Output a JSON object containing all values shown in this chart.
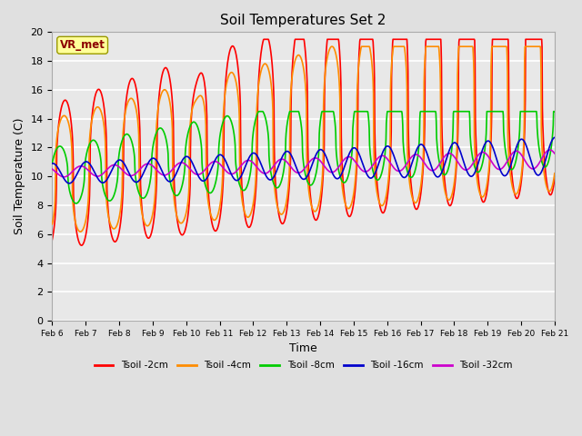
{
  "title": "Soil Temperatures Set 2",
  "xlabel": "Time",
  "ylabel": "Soil Temperature (C)",
  "ylim": [
    0,
    20
  ],
  "annotation_text": "VR_met",
  "annotation_color": "#8B0000",
  "annotation_bg": "#FFFF99",
  "annotation_edge": "#999900",
  "bg_color": "#E0E0E0",
  "plot_bg": "#E8E8E8",
  "grid_color": "#FFFFFF",
  "colors": {
    "Tsoil -2cm": "#FF0000",
    "Tsoil -4cm": "#FF8C00",
    "Tsoil -8cm": "#00CC00",
    "Tsoil -16cm": "#0000CC",
    "Tsoil -32cm": "#CC00CC"
  },
  "xtick_labels": [
    "Feb 6",
    "Feb 7",
    "Feb 8",
    "Feb 9",
    "Feb 10",
    "Feb 11",
    "Feb 12",
    "Feb 13",
    "Feb 14",
    "Feb 15",
    "Feb 16",
    "Feb 17",
    "Feb 18",
    "Feb 19",
    "Feb 20",
    "Feb 21"
  ]
}
